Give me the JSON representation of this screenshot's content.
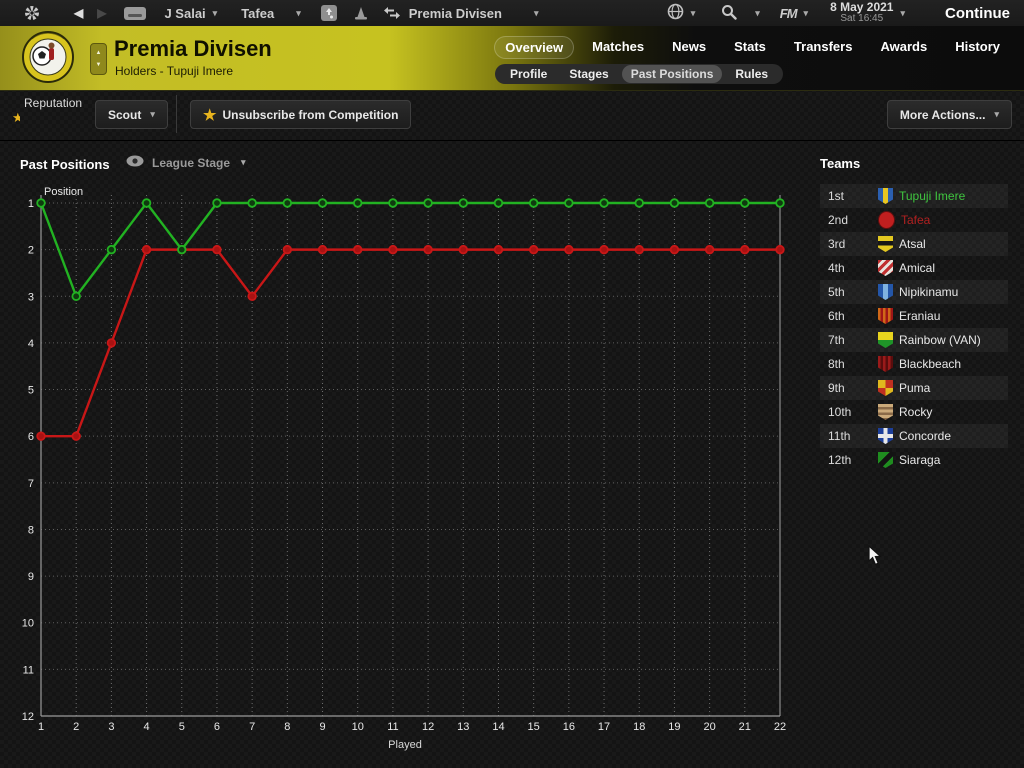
{
  "topbar": {
    "manager": "J Salai",
    "team": "Tafea",
    "competition": "Premia Divisen",
    "fm_label": "FM",
    "date_line1": "8 May 2021",
    "date_line2": "Sat 16:45",
    "continue_label": "Continue"
  },
  "header": {
    "title": "Premia Divisen",
    "subtitle": "Holders - Tupuji Imere",
    "tabs": [
      "Overview",
      "Matches",
      "News",
      "Stats",
      "Transfers",
      "Awards",
      "History"
    ],
    "active_tab": "Overview",
    "subtabs": [
      "Profile",
      "Stages",
      "Past Positions",
      "Rules"
    ],
    "active_subtab": "Past Positions"
  },
  "toolbar": {
    "reputation_label": "Reputation",
    "scout_label": "Scout",
    "unsubscribe_label": "Unsubscribe from Competition",
    "more_actions_label": "More Actions..."
  },
  "main": {
    "section_title": "Past Positions",
    "stage_selector": "League Stage"
  },
  "chart_data": {
    "type": "line",
    "title": "Past Positions",
    "xlabel": "Played",
    "ylabel": "Position",
    "x": [
      1,
      2,
      3,
      4,
      5,
      6,
      7,
      8,
      9,
      10,
      11,
      12,
      13,
      14,
      15,
      16,
      17,
      18,
      19,
      20,
      21,
      22
    ],
    "xlim": [
      1,
      22
    ],
    "ylim": [
      1,
      12
    ],
    "y_inverted": true,
    "grid": "dotted",
    "series": [
      {
        "name": "Tupuji Imere",
        "color": "#22b222",
        "marker_fill": "#0f3a0f",
        "values": [
          1,
          3,
          2,
          1,
          2,
          1,
          1,
          1,
          1,
          1,
          1,
          1,
          1,
          1,
          1,
          1,
          1,
          1,
          1,
          1,
          1,
          1
        ]
      },
      {
        "name": "Tafea",
        "color": "#c81717",
        "marker_fill": "#a81212",
        "values": [
          6,
          6,
          4,
          2,
          2,
          2,
          3,
          2,
          2,
          2,
          2,
          2,
          2,
          2,
          2,
          2,
          2,
          2,
          2,
          2,
          2,
          2
        ]
      }
    ]
  },
  "teams": {
    "title": "Teams",
    "rows": [
      {
        "pos": "1st",
        "name": "Tupuji Imere",
        "color": "#3fc43f",
        "badge": {
          "shape": "shield",
          "pattern": "stripesV",
          "colors": [
            "#2b5fb0",
            "#e8c622"
          ]
        }
      },
      {
        "pos": "2nd",
        "name": "Tafea",
        "color": "#b02020",
        "badge": {
          "shape": "circle",
          "pattern": "solid",
          "colors": [
            "#c01f1f",
            "#8a1414"
          ]
        }
      },
      {
        "pos": "3rd",
        "name": "Atsal",
        "color": "#e8e8e8",
        "badge": {
          "shape": "shield",
          "pattern": "band",
          "colors": [
            "#e3c820",
            "#161616"
          ]
        }
      },
      {
        "pos": "4th",
        "name": "Amical",
        "color": "#e8e8e8",
        "badge": {
          "shape": "shield",
          "pattern": "diag",
          "colors": [
            "#c03030",
            "#e8e4de"
          ]
        }
      },
      {
        "pos": "5th",
        "name": "Nipikinamu",
        "color": "#e8e8e8",
        "badge": {
          "shape": "shield",
          "pattern": "stripesV",
          "colors": [
            "#2456a8",
            "#7fb2e0"
          ]
        }
      },
      {
        "pos": "6th",
        "name": "Eraniau",
        "color": "#e8e8e8",
        "badge": {
          "shape": "shield",
          "pattern": "pinstripeV",
          "colors": [
            "#d06818",
            "#a01616"
          ]
        }
      },
      {
        "pos": "7th",
        "name": "Rainbow (VAN)",
        "color": "#e8e8e8",
        "badge": {
          "shape": "shield",
          "pattern": "splitH",
          "colors": [
            "#e8d41e",
            "#1f9428"
          ]
        }
      },
      {
        "pos": "8th",
        "name": "Blackbeach",
        "color": "#e8e8e8",
        "badge": {
          "shape": "shield",
          "pattern": "pinstripeV",
          "colors": [
            "#9a1a1a",
            "#5a0d0d"
          ]
        }
      },
      {
        "pos": "9th",
        "name": "Puma",
        "color": "#e8e8e8",
        "badge": {
          "shape": "shield",
          "pattern": "checker",
          "colors": [
            "#c03020",
            "#e0b81e"
          ]
        }
      },
      {
        "pos": "10th",
        "name": "Rocky",
        "color": "#e8e8e8",
        "badge": {
          "shape": "shield",
          "pattern": "pinstripeH",
          "colors": [
            "#cbaa7a",
            "#8a6a48"
          ]
        }
      },
      {
        "pos": "11th",
        "name": "Concorde",
        "color": "#e8e8e8",
        "badge": {
          "shape": "shield",
          "pattern": "cross",
          "colors": [
            "#1d3f9a",
            "#e8e8e8"
          ]
        }
      },
      {
        "pos": "12th",
        "name": "Siaraga",
        "color": "#e8e8e8",
        "badge": {
          "shape": "shield",
          "pattern": "diagBand",
          "colors": [
            "#1f8c1f",
            "#131313"
          ]
        }
      }
    ]
  }
}
